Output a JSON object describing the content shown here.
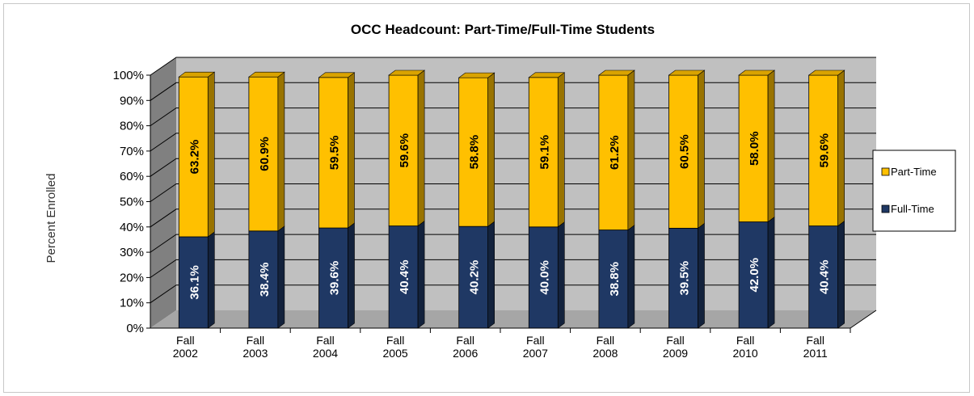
{
  "chart_data": {
    "type": "bar",
    "stacked": true,
    "percent_stacked": true,
    "three_d": true,
    "title": "OCC Headcount:  Part-Time/Full-Time  Students",
    "ylabel": "Percent Enrolled",
    "xlabel": "",
    "ylim": [
      0,
      100
    ],
    "y_ticks": [
      "0%",
      "10%",
      "20%",
      "30%",
      "40%",
      "50%",
      "60%",
      "70%",
      "80%",
      "90%",
      "100%"
    ],
    "categories": [
      [
        "Fall",
        "2002"
      ],
      [
        "Fall",
        "2003"
      ],
      [
        "Fall",
        "2004"
      ],
      [
        "Fall",
        "2005"
      ],
      [
        "Fall",
        "2006"
      ],
      [
        "Fall",
        "2007"
      ],
      [
        "Fall",
        "2008"
      ],
      [
        "Fall",
        "2009"
      ],
      [
        "Fall",
        "2010"
      ],
      [
        "Fall",
        "2011"
      ]
    ],
    "series": [
      {
        "name": "Full-Time",
        "color": "#1f3864",
        "label_color": "#ffffff",
        "values": [
          36.1,
          38.4,
          39.6,
          40.4,
          40.2,
          40.0,
          38.8,
          39.5,
          42.0,
          40.4
        ],
        "labels": [
          "36.1%",
          "38.4%",
          "39.6%",
          "40.4%",
          "40.2%",
          "40.0%",
          "38.8%",
          "39.5%",
          "42.0%",
          "40.4%"
        ]
      },
      {
        "name": "Part-Time",
        "color": "#ffc000",
        "label_color": "#000000",
        "values": [
          63.2,
          60.9,
          59.5,
          59.6,
          58.8,
          59.1,
          61.2,
          60.5,
          58.0,
          59.6
        ],
        "labels": [
          "63.2%",
          "60.9%",
          "59.5%",
          "59.6%",
          "58.8%",
          "59.1%",
          "61.2%",
          "60.5%",
          "58.0%",
          "59.6%"
        ]
      }
    ],
    "legend": {
      "position": "right",
      "entries": [
        "Part-Time",
        "Full-Time"
      ]
    },
    "grid": true,
    "colors": {
      "wall": "#c0c0c0",
      "side_wall": "#808080",
      "floor": "#a6a6a6",
      "gridline": "#000000"
    }
  }
}
